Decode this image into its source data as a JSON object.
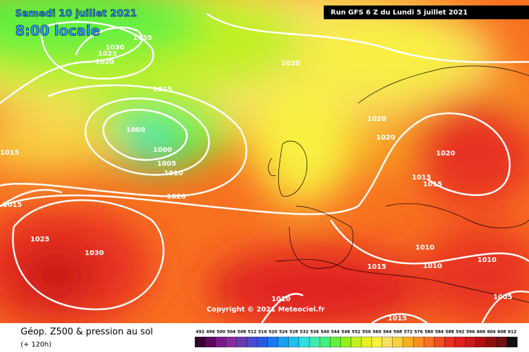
{
  "header": {
    "date": "Samedi 10 juillet 2021",
    "time": "8:00 locale",
    "run": "Run GFS 6 Z du Lundi 5 juillet 2021"
  },
  "copyright": "Copyright © 2021 Meteociel.fr",
  "footer": {
    "title": "Géop. Z500 & pression au sol",
    "lead": "(+ 120h)"
  },
  "isobar_labels": [
    1035,
    1030,
    1025,
    1020,
    1020,
    1015,
    1000,
    1000,
    1005,
    1010,
    1020,
    1015,
    1015,
    1025,
    1030,
    1020,
    1020,
    1020,
    1015,
    1015,
    1010,
    1015,
    1010,
    1010,
    1010,
    1005,
    1015
  ],
  "legend": {
    "levels": [
      492,
      496,
      500,
      504,
      508,
      512,
      516,
      520,
      524,
      528,
      532,
      536,
      540,
      544,
      548,
      552,
      556,
      560,
      564,
      568,
      572,
      576,
      580,
      584,
      588,
      592,
      596,
      600,
      604,
      608,
      612
    ],
    "colors": [
      "#3a0030",
      "#5a0a5a",
      "#7a1a8a",
      "#8a2aa0",
      "#6a3ab0",
      "#4a4ad0",
      "#2a5ae0",
      "#1a7af0",
      "#1aa0f0",
      "#20c0f0",
      "#30e0e0",
      "#40e8b0",
      "#40f080",
      "#60f040",
      "#90f020",
      "#c0f020",
      "#e8f020",
      "#f8f040",
      "#f8e060",
      "#f8d040",
      "#f8b020",
      "#f89020",
      "#f87020",
      "#f05020",
      "#e83020",
      "#e02020",
      "#c81818",
      "#b01010",
      "#901010",
      "#701010",
      "#101010"
    ]
  }
}
